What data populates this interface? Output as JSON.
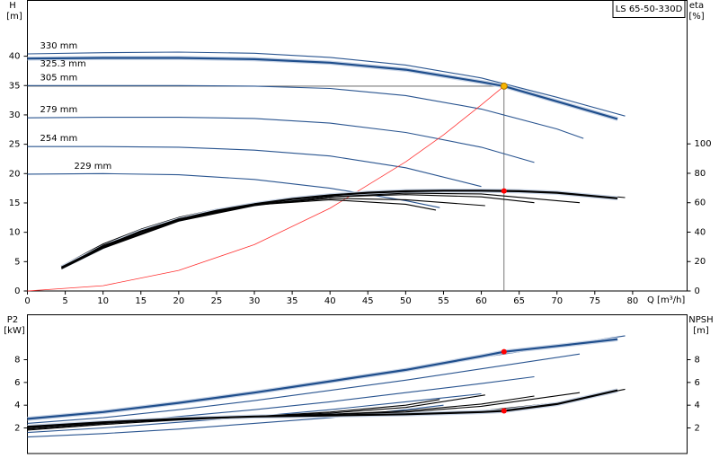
{
  "chart_data": [
    {
      "type": "line",
      "title": "LS 65-50-330D",
      "ylabel": "H",
      "ylabel_unit": "[m]",
      "y2label": "eta",
      "y2label_unit": "[%]",
      "xlabel": "Q [m³/h]",
      "xlim": [
        0,
        87.2
      ],
      "xticks": [
        0,
        5,
        10,
        15,
        20,
        25,
        30,
        35,
        40,
        45,
        50,
        55,
        60,
        65,
        70,
        75,
        80
      ],
      "ylim": [
        0,
        49.5
      ],
      "yticks": [
        0,
        5,
        10,
        15,
        20,
        25,
        30,
        35,
        40
      ],
      "y2lim": [
        0,
        197.5
      ],
      "y2ticks": [
        0,
        20,
        40,
        60,
        80,
        100
      ],
      "series": [
        {
          "name": "330 mm",
          "color": "#2a5590",
          "x": [
            0,
            10,
            20,
            30,
            40,
            50,
            60,
            70,
            79
          ],
          "values": [
            40.4,
            40.6,
            40.7,
            40.5,
            39.8,
            38.5,
            36.3,
            33,
            29.8
          ]
        },
        {
          "name": "325.3 mm",
          "color": "#1f4e8c",
          "emphasis": true,
          "x": [
            0,
            10,
            20,
            30,
            40,
            50,
            60,
            63,
            70,
            78
          ],
          "values": [
            39.6,
            39.7,
            39.7,
            39.5,
            38.9,
            37.7,
            35.6,
            34.9,
            32.3,
            29.3
          ]
        },
        {
          "name": "305 mm",
          "color": "#2a5590",
          "x": [
            0,
            10,
            20,
            30,
            40,
            50,
            60,
            70,
            73.5
          ],
          "values": [
            35,
            35,
            35,
            34.9,
            34.5,
            33.3,
            31,
            27.6,
            26
          ]
        },
        {
          "name": "279 mm",
          "color": "#2a5590",
          "x": [
            0,
            10,
            20,
            30,
            40,
            50,
            60,
            67
          ],
          "values": [
            29.5,
            29.6,
            29.6,
            29.4,
            28.6,
            27,
            24.5,
            21.9
          ]
        },
        {
          "name": "254 mm",
          "color": "#2a5590",
          "x": [
            0,
            10,
            20,
            30,
            40,
            50,
            60
          ],
          "values": [
            24.6,
            24.6,
            24.5,
            24,
            23,
            21,
            17.8
          ]
        },
        {
          "name": "229 mm",
          "color": "#2a5590",
          "x": [
            0,
            10,
            20,
            30,
            40,
            50,
            54.5
          ],
          "values": [
            19.9,
            20,
            19.8,
            19,
            17.5,
            15.4,
            14.2
          ]
        },
        {
          "color": "#ff3030",
          "thin": true,
          "x": [
            0,
            10,
            20,
            30,
            40,
            50,
            55,
            60,
            63
          ],
          "values": [
            0,
            0.9,
            3.5,
            7.9,
            14.1,
            22,
            26.6,
            31.7,
            34.9
          ]
        },
        {
          "color": "#000000",
          "axis": "y2",
          "x": [
            4.5,
            10,
            15,
            20,
            25,
            30,
            35,
            40,
            45,
            50,
            55,
            60,
            65,
            70,
            79
          ],
          "values": [
            17,
            32,
            42,
            50,
            55.5,
            59.5,
            62.5,
            65,
            66.8,
            68,
            68.7,
            68.8,
            68.6,
            67.6,
            63.5
          ]
        },
        {
          "color": "#000000",
          "axis": "y2",
          "emphasis": true,
          "x": [
            4.5,
            10,
            15,
            20,
            25,
            30,
            35,
            40,
            45,
            50,
            55,
            60,
            63,
            65,
            70,
            78
          ],
          "values": [
            16,
            30,
            40.5,
            48.5,
            54.5,
            59,
            62.5,
            65,
            66.8,
            67.8,
            68.2,
            68.2,
            68,
            67.8,
            66.8,
            63
          ]
        },
        {
          "color": "#000000",
          "axis": "y2",
          "x": [
            4.5,
            10,
            20,
            30,
            40,
            50,
            60,
            73
          ],
          "values": [
            15,
            29,
            47.5,
            58,
            64,
            66.5,
            66,
            60
          ]
        },
        {
          "color": "#000000",
          "axis": "y2",
          "x": [
            4.5,
            10,
            20,
            30,
            40,
            50,
            60,
            67
          ],
          "values": [
            15.5,
            29.5,
            48,
            58.5,
            64,
            65.5,
            64,
            60
          ]
        },
        {
          "color": "#000000",
          "axis": "y2",
          "x": [
            4.5,
            10,
            20,
            30,
            40,
            50,
            60.5
          ],
          "values": [
            16,
            30,
            48.5,
            58.5,
            63,
            62,
            58
          ]
        },
        {
          "color": "#000000",
          "axis": "y2",
          "x": [
            5,
            10,
            20,
            30,
            40,
            50,
            54
          ],
          "values": [
            17,
            31,
            49,
            58.5,
            62,
            59,
            55
          ]
        }
      ],
      "duty_point": {
        "x": 63,
        "h": 34.9,
        "eta": 68
      }
    },
    {
      "type": "line",
      "ylabel": "P2",
      "ylabel_unit": "[kW]",
      "y2label": "NPSH",
      "y2label_unit": "[m]",
      "xlim": [
        0,
        87.2
      ],
      "ylim": [
        -0.25,
        11.95
      ],
      "yticks": [
        2,
        4,
        6,
        8
      ],
      "y2lim": [
        -0.25,
        11.95
      ],
      "y2ticks": [
        2,
        4,
        6,
        8
      ],
      "series": [
        {
          "color": "#2a5590",
          "x": [
            0,
            10,
            20,
            30,
            40,
            50,
            60,
            70,
            79
          ],
          "values": [
            2.9,
            3.5,
            4.3,
            5.2,
            6.2,
            7.2,
            8.2,
            9.2,
            10.1
          ]
        },
        {
          "color": "#1f4e8c",
          "emphasis": true,
          "x": [
            0,
            10,
            20,
            30,
            40,
            50,
            60,
            63,
            70,
            78
          ],
          "values": [
            2.8,
            3.4,
            4.2,
            5.1,
            6.1,
            7.1,
            8.3,
            8.7,
            9.2,
            9.8
          ]
        },
        {
          "color": "#2a5590",
          "x": [
            0,
            10,
            20,
            30,
            40,
            50,
            60,
            73
          ],
          "values": [
            2.4,
            2.9,
            3.6,
            4.4,
            5.3,
            6.2,
            7.2,
            8.5
          ]
        },
        {
          "color": "#2a5590",
          "x": [
            0,
            10,
            20,
            30,
            40,
            50,
            60,
            67
          ],
          "values": [
            2,
            2.4,
            3,
            3.6,
            4.3,
            5.1,
            5.9,
            6.5
          ]
        },
        {
          "color": "#2a5590",
          "x": [
            0,
            10,
            20,
            30,
            40,
            50,
            60
          ],
          "values": [
            1.6,
            2,
            2.5,
            3,
            3.6,
            4.3,
            5
          ]
        },
        {
          "color": "#2a5590",
          "x": [
            0,
            10,
            20,
            30,
            40,
            50,
            55
          ],
          "values": [
            1.2,
            1.5,
            1.9,
            2.4,
            2.9,
            3.6,
            4
          ]
        },
        {
          "color": "#000000",
          "axis": "y2",
          "x": [
            0,
            10,
            20,
            30,
            40,
            50,
            60,
            70,
            79
          ],
          "values": [
            2.2,
            2.6,
            2.9,
            3.1,
            3.2,
            3.3,
            3.5,
            4.2,
            5.4
          ]
        },
        {
          "color": "#000000",
          "axis": "y2",
          "emphasis": true,
          "x": [
            0,
            10,
            20,
            30,
            40,
            50,
            60,
            63,
            70,
            78
          ],
          "values": [
            2.1,
            2.5,
            2.8,
            3,
            3.1,
            3.2,
            3.4,
            3.5,
            4.1,
            5.3
          ]
        },
        {
          "color": "#000000",
          "axis": "y2",
          "x": [
            0,
            10,
            20,
            30,
            40,
            50,
            60,
            73
          ],
          "values": [
            2,
            2.5,
            2.8,
            3,
            3.2,
            3.4,
            3.9,
            5.1
          ]
        },
        {
          "color": "#000000",
          "axis": "y2",
          "x": [
            0,
            10,
            20,
            30,
            40,
            50,
            60,
            67
          ],
          "values": [
            1.9,
            2.4,
            2.8,
            3,
            3.2,
            3.5,
            4.1,
            4.8
          ]
        },
        {
          "color": "#000000",
          "axis": "y2",
          "x": [
            0,
            10,
            20,
            30,
            40,
            50,
            60.5
          ],
          "values": [
            1.9,
            2.4,
            2.8,
            3,
            3.3,
            3.8,
            4.9
          ]
        },
        {
          "color": "#000000",
          "axis": "y2",
          "x": [
            0,
            10,
            20,
            30,
            40,
            50,
            54.5
          ],
          "values": [
            1.8,
            2.3,
            2.7,
            3,
            3.4,
            4,
            4.5
          ]
        }
      ],
      "duty_point": {
        "x": 63,
        "p2": 8.7,
        "npsh": 3.5
      }
    }
  ]
}
